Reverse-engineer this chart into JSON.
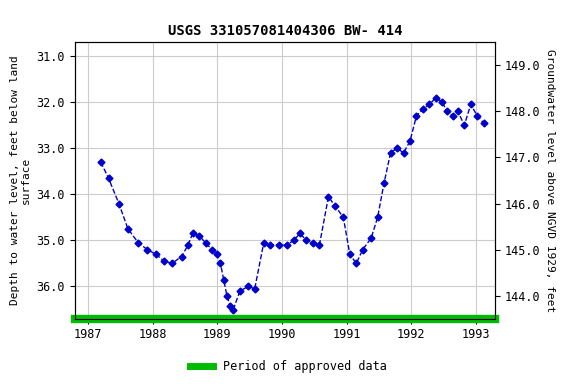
{
  "title": "USGS 331057081404306 BW- 414",
  "ylabel_left": "Depth to water level, feet below land\nsurface",
  "ylabel_right": "Groundwater level above NGVD 1929, feet",
  "ylim_left": [
    36.7,
    30.7
  ],
  "ylim_right": [
    143.5,
    149.5
  ],
  "yticks_left": [
    31.0,
    32.0,
    33.0,
    34.0,
    35.0,
    36.0
  ],
  "yticks_right": [
    144.0,
    145.0,
    146.0,
    147.0,
    148.0,
    149.0
  ],
  "xlim": [
    1986.8,
    1993.3
  ],
  "xticks": [
    1987,
    1988,
    1989,
    1990,
    1991,
    1992,
    1993
  ],
  "line_color": "#0000CC",
  "marker": "D",
  "markersize": 3.5,
  "linestyle": "--",
  "linewidth": 1.0,
  "legend_label": "Period of approved data",
  "legend_color": "#00BB00",
  "background_color": "#ffffff",
  "plot_bg_color": "#ffffff",
  "grid_color": "#cccccc",
  "title_fontsize": 10,
  "axis_label_fontsize": 8,
  "tick_fontsize": 8.5,
  "data_x": [
    1987.2,
    1987.32,
    1987.48,
    1987.62,
    1987.78,
    1987.92,
    1988.05,
    1988.18,
    1988.3,
    1988.45,
    1988.55,
    1988.62,
    1988.72,
    1988.82,
    1988.92,
    1989.0,
    1989.05,
    1989.1,
    1989.15,
    1989.2,
    1989.25,
    1989.35,
    1989.48,
    1989.58,
    1989.72,
    1989.82,
    1989.95,
    1990.08,
    1990.18,
    1990.28,
    1990.38,
    1990.48,
    1990.58,
    1990.72,
    1990.82,
    1990.95,
    1991.05,
    1991.15,
    1991.25,
    1991.38,
    1991.48,
    1991.58,
    1991.68,
    1991.78,
    1991.88,
    1991.98,
    1992.08,
    1992.18,
    1992.28,
    1992.38,
    1992.48,
    1992.55,
    1992.65,
    1992.72,
    1992.82,
    1992.92,
    1993.02,
    1993.12
  ],
  "data_y": [
    33.3,
    33.65,
    34.2,
    34.75,
    35.05,
    35.2,
    35.3,
    35.45,
    35.5,
    35.35,
    35.1,
    34.85,
    34.9,
    35.05,
    35.2,
    35.3,
    35.5,
    35.85,
    36.2,
    36.42,
    36.5,
    36.1,
    36.0,
    36.05,
    35.05,
    35.1,
    35.1,
    35.1,
    35.0,
    34.85,
    35.0,
    35.05,
    35.1,
    34.05,
    34.25,
    34.5,
    35.3,
    35.5,
    35.2,
    34.95,
    34.5,
    33.75,
    33.1,
    33.0,
    33.1,
    32.85,
    32.3,
    32.15,
    32.05,
    31.9,
    32.0,
    32.2,
    32.3,
    32.2,
    32.5,
    32.05,
    32.3,
    32.45
  ],
  "approved_x_start": 1986.8,
  "approved_x_end": 1993.3
}
